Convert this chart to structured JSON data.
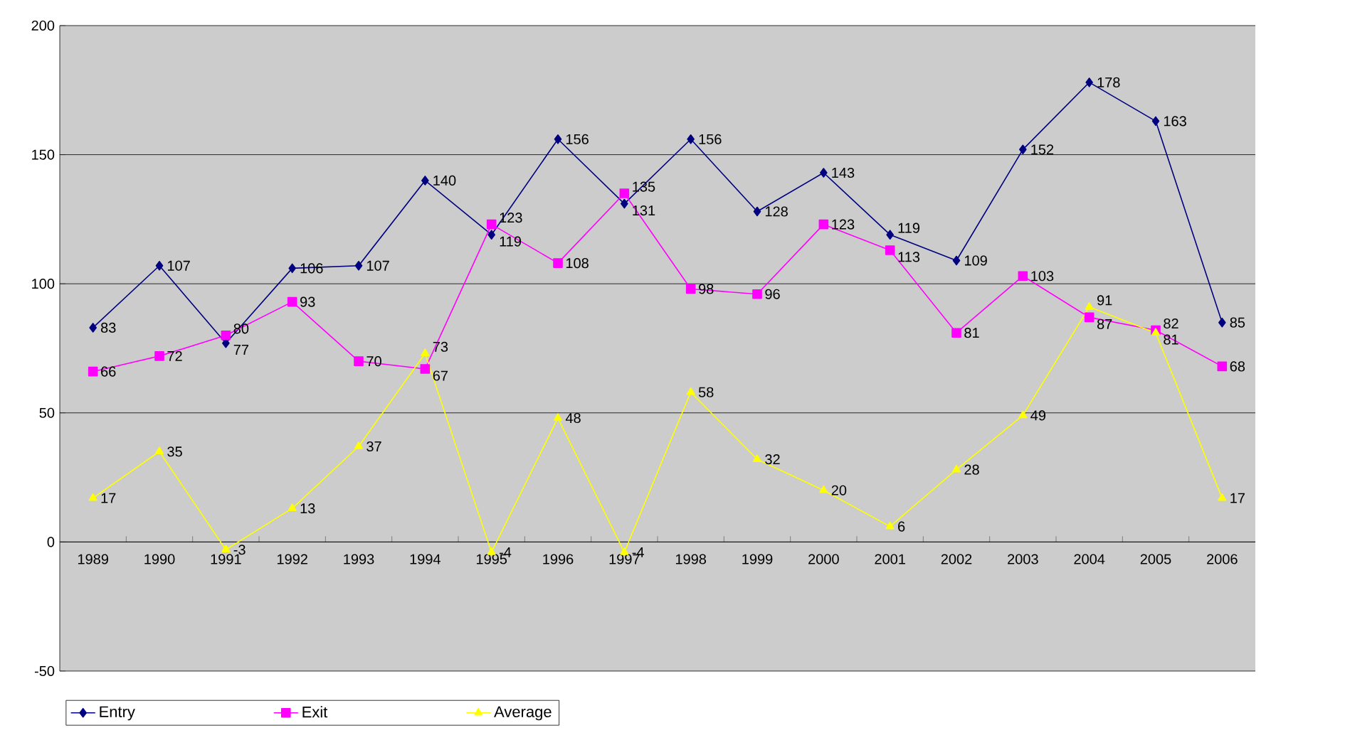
{
  "chart_data": {
    "type": "line",
    "categories": [
      "1989",
      "1990",
      "1991",
      "1992",
      "1993",
      "1994",
      "1995",
      "1996",
      "1997",
      "1998",
      "1999",
      "2000",
      "2001",
      "2002",
      "2003",
      "2004",
      "2005",
      "2006"
    ],
    "series": [
      {
        "name": "Entry",
        "color": "#000080",
        "marker": "diamond",
        "values": [
          83,
          107,
          77,
          106,
          107,
          140,
          119,
          156,
          131,
          156,
          128,
          143,
          119,
          109,
          152,
          178,
          163,
          85
        ]
      },
      {
        "name": "Exit",
        "color": "#ff00ff",
        "marker": "square",
        "values": [
          66,
          72,
          80,
          93,
          70,
          67,
          123,
          108,
          135,
          98,
          96,
          123,
          113,
          81,
          103,
          87,
          82,
          68
        ]
      },
      {
        "name": "Average",
        "color": "#ffff00",
        "marker": "triangle",
        "values": [
          17,
          35,
          -3,
          13,
          37,
          73,
          -4,
          48,
          -4,
          58,
          32,
          20,
          6,
          28,
          49,
          91,
          81,
          17
        ]
      }
    ],
    "ylim": [
      -50,
      200
    ],
    "yticks": [
      -50,
      0,
      50,
      100,
      150,
      200
    ],
    "grid": "y",
    "legend": "bottom",
    "data_labels": true,
    "line_style": "solid"
  }
}
